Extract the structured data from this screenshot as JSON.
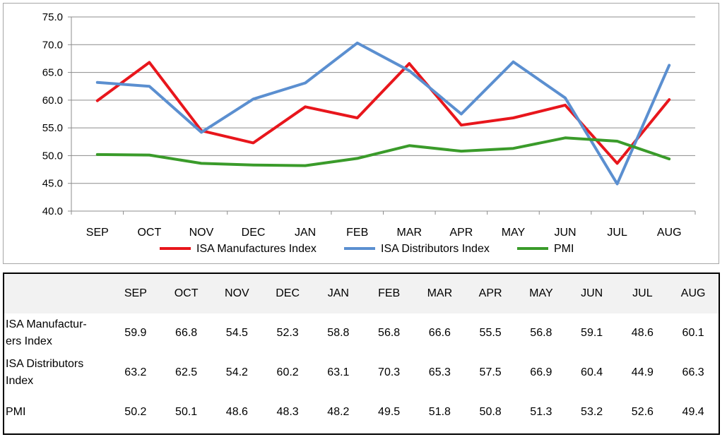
{
  "chart_data": {
    "type": "line",
    "categories": [
      "SEP",
      "OCT",
      "NOV",
      "DEC",
      "JAN",
      "FEB",
      "MAR",
      "APR",
      "MAY",
      "JUN",
      "JUL",
      "AUG"
    ],
    "series": [
      {
        "name": "ISA Manufactures Index",
        "color": "#e8161c",
        "values": [
          59.9,
          66.8,
          54.5,
          52.3,
          58.8,
          56.8,
          66.6,
          55.5,
          56.8,
          59.1,
          48.6,
          60.1
        ]
      },
      {
        "name": "ISA Distributors Index",
        "color": "#5b8fd0",
        "values": [
          63.2,
          62.5,
          54.2,
          60.2,
          63.1,
          70.3,
          65.3,
          57.5,
          66.9,
          60.4,
          44.9,
          66.3
        ]
      },
      {
        "name": "PMI",
        "color": "#3a9b2a",
        "values": [
          50.2,
          50.1,
          48.6,
          48.3,
          48.2,
          49.5,
          51.8,
          50.8,
          51.3,
          53.2,
          52.6,
          49.4
        ]
      }
    ],
    "ylim": [
      40,
      75
    ],
    "yticks": [
      "40.0",
      "45.0",
      "50.0",
      "55.0",
      "60.0",
      "65.0",
      "70.0",
      "75.0"
    ],
    "grid": true,
    "legend_position": "bottom"
  },
  "table": {
    "columns": [
      "SEP",
      "OCT",
      "NOV",
      "DEC",
      "JAN",
      "FEB",
      "MAR",
      "APR",
      "MAY",
      "JUN",
      "JUL",
      "AUG"
    ],
    "rows": [
      {
        "label_lines": [
          "ISA Manufactur-",
          "ers Index"
        ],
        "values": [
          "59.9",
          "66.8",
          "54.5",
          "52.3",
          "58.8",
          "56.8",
          "66.6",
          "55.5",
          "56.8",
          "59.1",
          "48.6",
          "60.1"
        ]
      },
      {
        "label_lines": [
          "ISA Distributors",
          "Index"
        ],
        "values": [
          "63.2",
          "62.5",
          "54.2",
          "60.2",
          "63.1",
          "70.3",
          "65.3",
          "57.5",
          "66.9",
          "60.4",
          "44.9",
          "66.3"
        ]
      },
      {
        "label_lines": [
          "PMI"
        ],
        "values": [
          "50.2",
          "50.1",
          "48.6",
          "48.3",
          "48.2",
          "49.5",
          "51.8",
          "50.8",
          "51.3",
          "53.2",
          "52.6",
          "49.4"
        ]
      }
    ]
  }
}
